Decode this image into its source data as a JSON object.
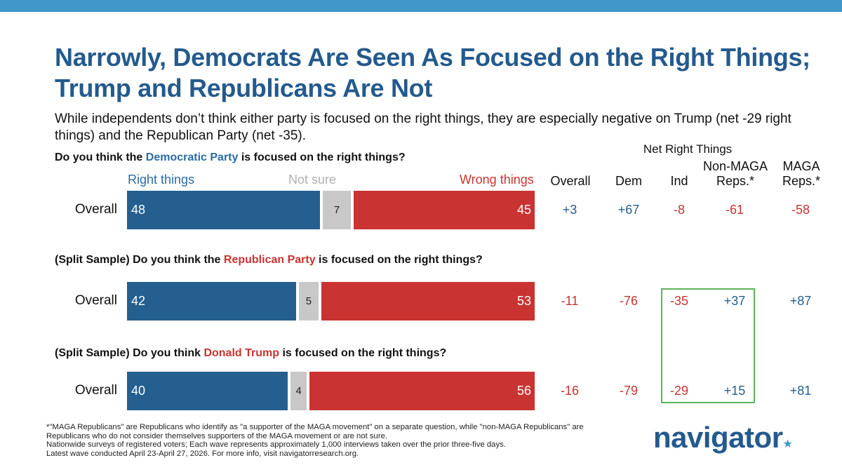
{
  "header": {
    "title_line1": "Narrowly, Democrats Are Seen As Focused on the Right Things;",
    "title_line2": "Trump and Republicans Are Not",
    "subtitle": "While independents don’t think either party is focused on the right things, they are especially negative on Trump (net -29 right things) and the Republican Party (net -35)."
  },
  "table": {
    "net_header": "Net Right Things",
    "columns": [
      "Overall",
      "Dem",
      "Ind",
      "Non-MAGA Reps.*",
      "MAGA Reps.*"
    ],
    "colors": {
      "right": "#245f8f",
      "not_sure": "#c8c8c8",
      "wrong": "#c93331",
      "highlight_box": "#5bb55b"
    }
  },
  "legend": {
    "right": "Right things",
    "not_sure": "Not sure",
    "wrong": "Wrong things"
  },
  "questions": [
    {
      "pre": "Do you think the ",
      "subject": "Democratic Party",
      "post": " is focused on the right things?"
    },
    {
      "pre": "(Split Sample) Do you think the ",
      "subject": "Republican Party",
      "post": " is focused on the right things?"
    },
    {
      "pre": "(Split Sample) Do you think ",
      "subject": "Donald Trump",
      "post": " is focused on the right things?"
    }
  ],
  "chart_data": {
    "type": "bar",
    "stacked": true,
    "orientation": "horizontal",
    "categories": [
      "Overall",
      "Overall",
      "Overall"
    ],
    "series": [
      {
        "name": "Right things",
        "values": [
          48,
          42,
          40
        ]
      },
      {
        "name": "Not sure",
        "values": [
          7,
          5,
          4
        ]
      },
      {
        "name": "Wrong things",
        "values": [
          45,
          53,
          56
        ]
      }
    ],
    "net_right_things": [
      {
        "Overall": "+3",
        "Dem": "+67",
        "Ind": "-8",
        "Non-MAGA Reps.*": "-61",
        "MAGA Reps.*": "-58"
      },
      {
        "Overall": "-11",
        "Dem": "-76",
        "Ind": "-35",
        "Non-MAGA Reps.*": "+37",
        "MAGA Reps.*": "+87"
      },
      {
        "Overall": "-16",
        "Dem": "-79",
        "Ind": "-29",
        "Non-MAGA Reps.*": "+15",
        "MAGA Reps.*": "+81"
      }
    ]
  },
  "footnote": {
    "line1": "*\"MAGA Republicans\" are Republicans who identify as \"a supporter of the MAGA movement\" on a separate question, while \"non-MAGA Republicans\" are Republicans who do not consider themselves supporters of the MAGA movement or are not sure.",
    "line2": "Nationwide surveys of registered voters; Each wave represents approximately 1,000 interviews taken over the prior three-five days.",
    "line3": "Latest wave conducted April 23-April 27, 2026. For more info, visit navigatorresearch.org."
  },
  "logo": {
    "text": "navigator",
    "star": "★"
  }
}
